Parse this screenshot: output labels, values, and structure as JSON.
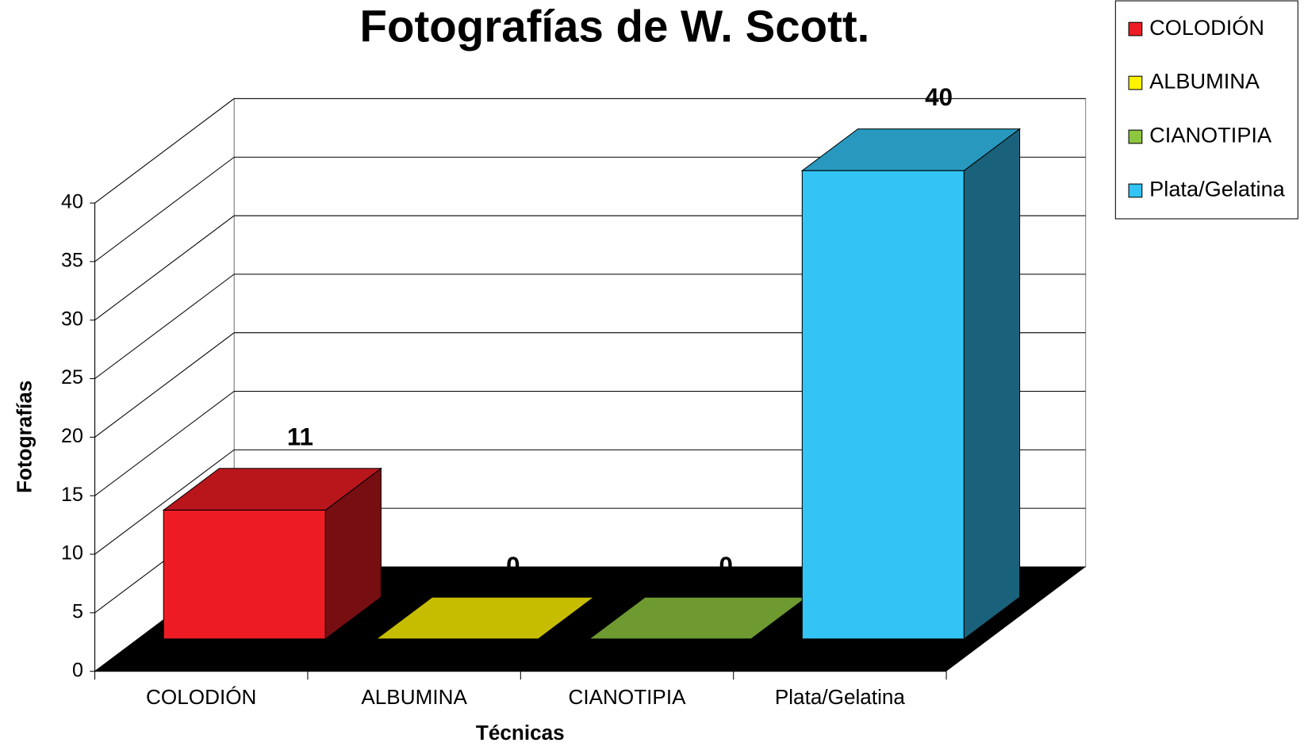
{
  "chart_data": {
    "type": "bar3d",
    "title": "Fotografías de W. Scott.",
    "x_label": "Técnicas",
    "y_label": "Fotografías",
    "categories": [
      "COLODIÓN",
      "ALBUMINA",
      "CIANOTIPIA",
      "Plata/Gelatina"
    ],
    "values": [
      11,
      0,
      0,
      40
    ],
    "colors": [
      "#ed1c24",
      "#fff200",
      "#8dc63f",
      "#33c3f5"
    ],
    "ylim": [
      0,
      40
    ],
    "yticks": [
      0,
      5,
      10,
      15,
      20,
      25,
      30,
      35,
      40
    ],
    "grid": true,
    "legend": "top-right"
  }
}
